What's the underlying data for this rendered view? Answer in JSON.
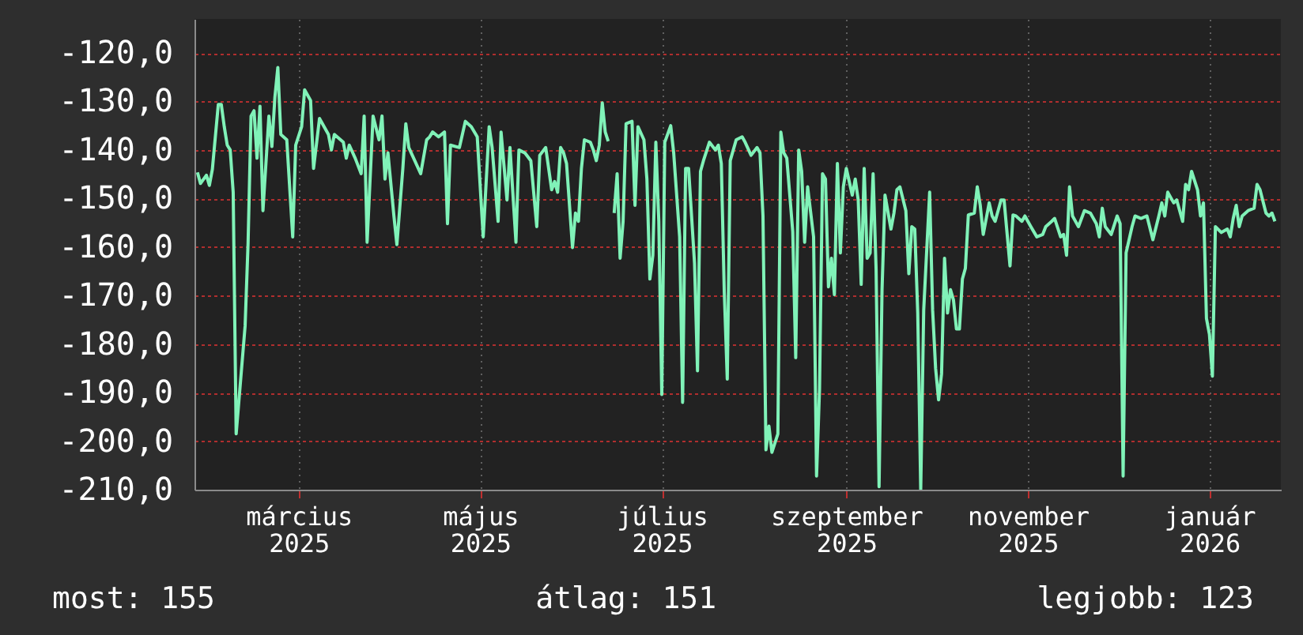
{
  "chart_data": {
    "type": "line",
    "xlim": [
      "2025-01-25",
      "2026-01-25"
    ],
    "ylim": [
      -210,
      -113
    ],
    "xticks": [
      {
        "value": "2025-03-01",
        "label": "március 2025"
      },
      {
        "value": "2025-05-01",
        "label": "május 2025"
      },
      {
        "value": "2025-07-01",
        "label": "július 2025"
      },
      {
        "value": "2025-09-01",
        "label": "szeptember 2025"
      },
      {
        "value": "2025-11-01",
        "label": "november 2025"
      },
      {
        "value": "2026-01-01",
        "label": "január 2026"
      }
    ],
    "yticks": [
      {
        "value": -120,
        "label": "-120,0"
      },
      {
        "value": -130,
        "label": "-130,0"
      },
      {
        "value": -140,
        "label": "-140,0"
      },
      {
        "value": -150,
        "label": "-150,0"
      },
      {
        "value": -160,
        "label": "-160,0"
      },
      {
        "value": -170,
        "label": "-170,0"
      },
      {
        "value": -180,
        "label": "-180,0"
      },
      {
        "value": -190,
        "label": "-190,0"
      },
      {
        "value": -200,
        "label": "-200,0"
      },
      {
        "value": -210,
        "label": "-210,0"
      }
    ],
    "grid": true,
    "line_style": "solid",
    "annotations": [
      "most: 155",
      "átlag: 151",
      "legjobb: 123"
    ],
    "x": [
      "2025-01-26",
      "2025-01-27",
      "2025-01-29",
      "2025-01-30",
      "2025-01-31",
      "2025-02-02",
      "2025-02-03",
      "2025-02-04",
      "2025-02-05",
      "2025-02-06",
      "2025-02-07",
      "2025-02-08",
      "2025-02-11",
      "2025-02-12",
      "2025-02-13",
      "2025-02-14",
      "2025-02-15",
      "2025-02-16",
      "2025-02-17",
      "2025-02-19",
      "2025-02-20",
      "2025-02-21",
      "2025-02-22",
      "2025-02-23",
      "2025-02-25",
      "2025-02-27",
      "2025-02-28",
      "2025-03-02",
      "2025-03-03",
      "2025-03-05",
      "2025-03-06",
      "2025-03-08",
      "2025-03-11",
      "2025-03-12",
      "2025-03-13",
      "2025-03-16",
      "2025-03-17",
      "2025-03-18",
      "2025-03-20",
      "2025-03-22",
      "2025-03-23",
      "2025-03-24",
      "2025-03-26",
      "2025-03-28",
      "2025-03-29",
      "2025-03-30",
      "2025-03-31",
      "2025-04-02",
      "2025-04-03",
      "2025-04-05",
      "2025-04-06",
      "2025-04-07",
      "2025-04-09",
      "2025-04-11",
      "2025-04-13",
      "2025-04-14",
      "2025-04-15",
      "2025-04-17",
      "2025-04-19",
      "2025-04-20",
      "2025-04-21",
      "2025-04-24",
      "2025-04-26",
      "2025-04-28",
      "2025-04-30",
      "2025-05-02",
      "2025-05-04",
      "2025-05-05",
      "2025-05-07",
      "2025-05-08",
      "2025-05-10",
      "2025-05-11",
      "2025-05-13",
      "2025-05-14",
      "2025-05-16",
      "2025-05-18",
      "2025-05-20",
      "2025-05-21",
      "2025-05-23",
      "2025-05-25",
      "2025-05-26",
      "2025-05-27",
      "2025-05-28",
      "2025-05-29",
      "2025-05-30",
      "2025-06-01",
      "2025-06-02",
      "2025-06-03",
      "2025-06-04",
      "2025-06-05",
      "2025-06-07",
      "2025-06-08",
      "2025-06-09",
      "2025-06-10",
      "2025-06-11",
      "2025-06-12",
      "2025-06-13",
      "2025-06-14",
      "2025-06-15",
      "2025-06-16",
      "2025-06-17",
      "2025-06-18",
      "2025-06-19",
      "2025-06-21",
      "2025-06-22",
      "2025-06-23",
      "2025-06-25",
      "2025-06-26",
      "2025-06-27",
      "2025-06-28",
      "2025-06-29",
      "2025-06-30",
      "2025-07-01",
      "2025-07-02",
      "2025-07-04",
      "2025-07-05",
      "2025-07-07",
      "2025-07-08",
      "2025-07-09",
      "2025-07-10",
      "2025-07-12",
      "2025-07-13",
      "2025-07-14",
      "2025-07-15",
      "2025-07-17",
      "2025-07-19",
      "2025-07-20",
      "2025-07-21",
      "2025-07-22",
      "2025-07-23",
      "2025-07-24",
      "2025-07-26",
      "2025-07-28",
      "2025-07-29",
      "2025-07-31",
      "2025-08-02",
      "2025-08-03",
      "2025-08-04",
      "2025-08-05",
      "2025-08-06",
      "2025-08-07",
      "2025-08-09",
      "2025-08-10",
      "2025-08-11",
      "2025-08-12",
      "2025-08-14",
      "2025-08-15",
      "2025-08-16",
      "2025-08-17",
      "2025-08-18",
      "2025-08-19",
      "2025-08-21",
      "2025-08-22",
      "2025-08-23",
      "2025-08-24",
      "2025-08-25",
      "2025-08-26",
      "2025-08-27",
      "2025-08-28",
      "2025-08-29",
      "2025-08-30",
      "2025-08-31",
      "2025-09-01",
      "2025-09-03",
      "2025-09-04",
      "2025-09-05",
      "2025-09-06",
      "2025-09-07",
      "2025-09-08",
      "2025-09-09",
      "2025-09-10",
      "2025-09-11",
      "2025-09-12",
      "2025-09-13",
      "2025-09-14",
      "2025-09-16",
      "2025-09-17",
      "2025-09-18",
      "2025-09-19",
      "2025-09-21",
      "2025-09-22",
      "2025-09-23",
      "2025-09-24",
      "2025-09-25",
      "2025-09-26",
      "2025-09-27",
      "2025-09-29",
      "2025-09-30",
      "2025-10-01",
      "2025-10-02",
      "2025-10-03",
      "2025-10-04",
      "2025-10-05",
      "2025-10-06",
      "2025-10-07",
      "2025-10-08",
      "2025-10-09",
      "2025-10-10",
      "2025-10-11",
      "2025-10-12",
      "2025-10-14",
      "2025-10-15",
      "2025-10-16",
      "2025-10-17",
      "2025-10-19",
      "2025-10-20",
      "2025-10-21",
      "2025-10-23",
      "2025-10-24",
      "2025-10-26",
      "2025-10-27",
      "2025-10-28",
      "2025-10-30",
      "2025-10-31",
      "2025-11-02",
      "2025-11-04",
      "2025-11-06",
      "2025-11-07",
      "2025-11-09",
      "2025-11-10",
      "2025-11-12",
      "2025-11-13",
      "2025-11-14",
      "2025-11-15",
      "2025-11-16",
      "2025-11-18",
      "2025-11-20",
      "2025-11-22",
      "2025-11-24",
      "2025-11-25",
      "2025-11-26",
      "2025-11-27",
      "2025-11-29",
      "2025-12-01",
      "2025-12-02",
      "2025-12-03",
      "2025-12-04",
      "2025-12-06",
      "2025-12-07",
      "2025-12-09",
      "2025-12-11",
      "2025-12-13",
      "2025-12-15",
      "2025-12-16",
      "2025-12-17",
      "2025-12-18",
      "2025-12-20",
      "2025-12-21",
      "2025-12-23",
      "2025-12-24",
      "2025-12-25",
      "2025-12-26",
      "2025-12-28",
      "2025-12-29",
      "2025-12-30",
      "2025-12-31",
      "2026-01-01",
      "2026-01-02",
      "2026-01-03",
      "2026-01-05",
      "2026-01-07",
      "2026-01-08",
      "2026-01-09",
      "2026-01-10",
      "2026-01-11",
      "2026-01-12",
      "2026-01-14",
      "2026-01-16",
      "2026-01-17",
      "2026-01-18",
      "2026-01-20",
      "2026-01-21",
      "2026-01-22",
      "2026-01-23"
    ],
    "series": [
      {
        "color": "#80f2b8",
        "values": [
          -144.6,
          -146.9,
          -145.2,
          -147.3,
          -144,
          -130.6,
          -130.6,
          -135.2,
          -139,
          -140,
          -148.7,
          -198.5,
          -176.3,
          -159.2,
          -133,
          -131.9,
          -141.7,
          -131,
          -152.5,
          -133,
          -139.3,
          -129.2,
          -123,
          -136.8,
          -137.9,
          -157.9,
          -139,
          -135.2,
          -127.6,
          -129.8,
          -143.8,
          -133.5,
          -136.8,
          -140,
          -136.8,
          -138.4,
          -141.7,
          -139,
          -141.7,
          -144.9,
          -133,
          -159,
          -133,
          -137.9,
          -133,
          -146,
          -140.6,
          -153.6,
          -159.5,
          -143.8,
          -134.6,
          -139.5,
          -142.2,
          -144.9,
          -137.9,
          -137.3,
          -136.3,
          -137.3,
          -136.3,
          -155.2,
          -139,
          -139.5,
          -134.1,
          -135.2,
          -137.3,
          -157.9,
          -135.2,
          -139.5,
          -154.7,
          -136.3,
          -150.3,
          -139.5,
          -159,
          -140,
          -140.6,
          -142.2,
          -155.8,
          -141.1,
          -139.5,
          -148.2,
          -146.5,
          -148.7,
          -139.5,
          -140.6,
          -142.8,
          -160.1,
          -153,
          -154.7,
          -143.8,
          -137.9,
          -138.4,
          -140,
          -142.2,
          -139,
          -130.3,
          -136.3,
          -138.2,
          null,
          -153,
          -144.9,
          -162.3,
          -154.7,
          -134.6,
          -134.1,
          -151.4,
          -135.2,
          -137.9,
          -146,
          -166.6,
          -161.7,
          -138.4,
          -154.7,
          -190.4,
          -138.4,
          -135,
          -140.6,
          -157.9,
          -192,
          -143.8,
          -143.8,
          -163.3,
          -185.5,
          -144.4,
          -142.2,
          -138.4,
          -140,
          -139,
          -142.8,
          -169.3,
          -187.2,
          -142.2,
          -137.9,
          -137.3,
          -138.4,
          -141.1,
          -139.5,
          -140.6,
          -153.6,
          -201.8,
          -196.9,
          -202.3,
          -198.5,
          -136.3,
          -140.6,
          -141.7,
          -156.8,
          -182.8,
          -140,
          -144.4,
          -159,
          -147.6,
          -157.9,
          -207.2,
          -189.3,
          -144.9,
          -146,
          -168.2,
          -162.3,
          -169.8,
          -142.8,
          -161.2,
          -147.6,
          -143.8,
          -149.3,
          -146,
          -150.3,
          -167.7,
          -143.8,
          -162.3,
          -161.2,
          -144.9,
          -164.4,
          -209.4,
          -168.8,
          -149.3,
          -156.3,
          -153,
          -148.2,
          -147.6,
          -152.5,
          -165.5,
          -155.8,
          -156.3,
          -173.6,
          -210,
          -173,
          -148.7,
          -173,
          -185,
          -191.5,
          -186.1,
          -162.3,
          -173.6,
          -168.8,
          -170.9,
          -176.9,
          -176.9,
          -166.6,
          -164.4,
          -153.4,
          -153,
          -147.6,
          -151.4,
          -157.4,
          -150.9,
          -153.6,
          -154.7,
          -150.3,
          -150.3,
          -163.9,
          -153.4,
          -153.6,
          -154.7,
          -153.6,
          -155.8,
          -157.9,
          -157.4,
          -155.8,
          -154.7,
          -154.1,
          -157.9,
          -157.4,
          -161.7,
          -147.6,
          -153.6,
          -155.8,
          -152.5,
          -153,
          -155.2,
          -157.9,
          -152,
          -155.8,
          -157.4,
          -153.6,
          -155.2,
          -207.2,
          -161.2,
          -155.8,
          -153.6,
          -154.1,
          -153.6,
          -158.5,
          -153.6,
          -150.9,
          -153.6,
          -148.7,
          -150.9,
          -150.3,
          -154.7,
          -147.1,
          -148.2,
          -144.4,
          -148.2,
          -153.6,
          -150.9,
          -174.7,
          -178,
          -186.6,
          -155.8,
          -157,
          -156.3,
          -157.9,
          -154.1,
          -151.4,
          -155.8,
          -153.6,
          -152.5,
          -152,
          -147.1,
          -148.2,
          -153,
          -153.6,
          -153,
          -154.7
        ]
      }
    ]
  }
}
